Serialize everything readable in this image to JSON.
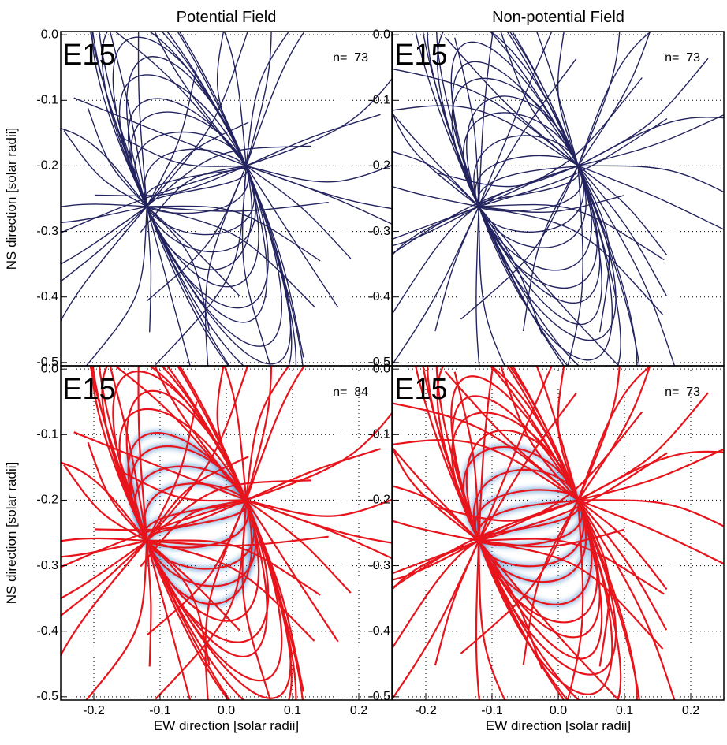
{
  "chart_data": [
    {
      "type": "fieldlines",
      "title": "Potential Field",
      "label": "E15",
      "annotation": "n=  73",
      "ylabel": "NS direction [solar radii]",
      "xlim": [
        -0.25,
        0.25
      ],
      "ylim": [
        -0.505,
        0.005
      ],
      "yticks": [
        {
          "value": 0,
          "label": "0.0"
        },
        -0.1,
        -0.2,
        -0.3,
        -0.4,
        -0.5
      ],
      "color": "#23235f",
      "grid": true
    },
    {
      "type": "fieldlines",
      "title": "Non-potential Field",
      "label": "E15",
      "annotation": "n=  73",
      "xlim": [
        -0.25,
        0.25
      ],
      "ylim": [
        -0.505,
        0.005
      ],
      "yticks": [
        {
          "value": 0,
          "label": "0.0"
        },
        -0.1,
        -0.2,
        -0.3,
        -0.4,
        -0.5
      ],
      "color": "#23235f",
      "grid": true
    },
    {
      "type": "fieldlines-overlay",
      "label": "E15",
      "annotation": "n=  84",
      "ylabel": "NS direction [solar radii]",
      "xlabel": "EW direction [solar radii]",
      "xlim": [
        -0.25,
        0.25
      ],
      "ylim": [
        -0.505,
        0.005
      ],
      "yticks": [
        {
          "value": 0,
          "label": "0.0"
        },
        -0.1,
        -0.2,
        -0.3,
        -0.4,
        -0.5
      ],
      "xticks": [
        -0.2,
        -0.1,
        {
          "value": 0,
          "label": "0.0"
        },
        0.1,
        0.2
      ],
      "color": "#e8141c",
      "grid": true
    },
    {
      "type": "fieldlines-overlay",
      "label": "E15",
      "annotation": "n=  73",
      "xlabel": "EW direction [solar radii]",
      "xlim": [
        -0.25,
        0.25
      ],
      "ylim": [
        -0.505,
        0.005
      ],
      "yticks": [
        {
          "value": 0,
          "label": "0.0"
        },
        -0.1,
        -0.2,
        -0.3,
        -0.4,
        -0.5
      ],
      "xticks": [
        -0.2,
        -0.1,
        {
          "value": 0,
          "label": "0.0"
        },
        0.1,
        0.2
      ],
      "color": "#e8141c",
      "grid": true
    }
  ]
}
